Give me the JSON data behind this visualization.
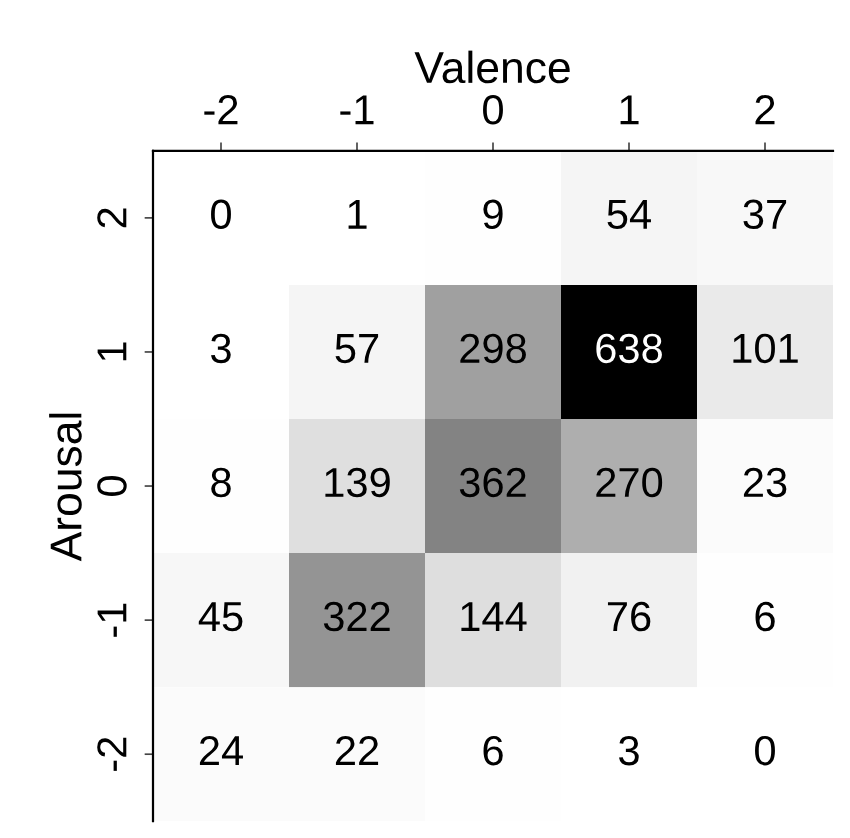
{
  "chart_data": {
    "type": "heatmap",
    "xlabel": "Valence",
    "ylabel": "Arousal",
    "categories": [
      "-2",
      "-1",
      "0",
      "1",
      "2"
    ],
    "y_categories": [
      "2",
      "1",
      "0",
      "-1",
      "-2"
    ],
    "cells": [
      [
        0,
        1,
        9,
        54,
        37
      ],
      [
        3,
        57,
        298,
        638,
        101
      ],
      [
        8,
        139,
        362,
        270,
        23
      ],
      [
        45,
        322,
        144,
        76,
        6
      ],
      [
        24,
        22,
        6,
        3,
        0
      ]
    ],
    "data_labels": true
  }
}
